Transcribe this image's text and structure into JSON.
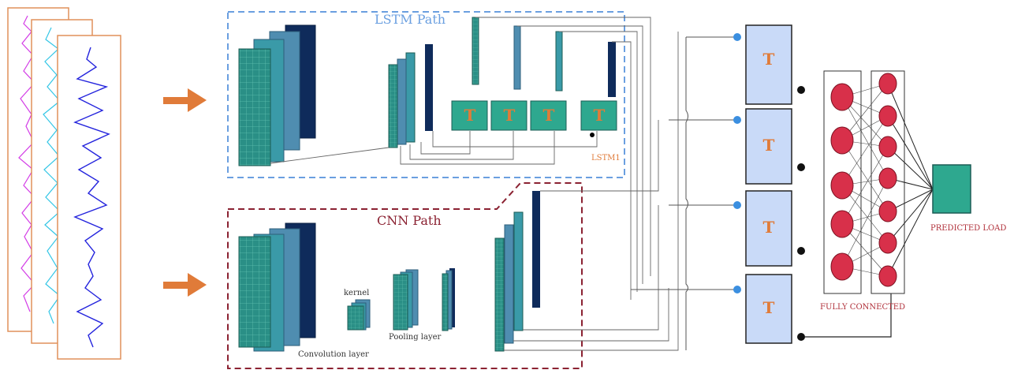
{
  "labels": {
    "lstm_path": "LSTM Path",
    "cnn_path": "CNN Path",
    "lstm1": "LSTM1",
    "kernel": "kernel",
    "pooling_layer": "Pooling layer",
    "convolution_layer": "Convolution layer",
    "fully_connected": "FULLY CONNECTED",
    "predicted_load": "PREDICTED LOAD"
  },
  "lstm_cells": [
    "T",
    "T",
    "T",
    "T"
  ],
  "t_blocks": [
    "T",
    "T",
    "T",
    "T"
  ],
  "colors": {
    "lstm_border": "#6a9fe0",
    "cnn_border": "#8b2232",
    "arrow": "#e07b39",
    "teal": "#2ea88f",
    "mid_blue": "#4f8db0",
    "navy": "#0f2b5b",
    "t_block_fill": "#c9daf8",
    "neuron": "#d8304a",
    "output": "#2ea88f"
  }
}
